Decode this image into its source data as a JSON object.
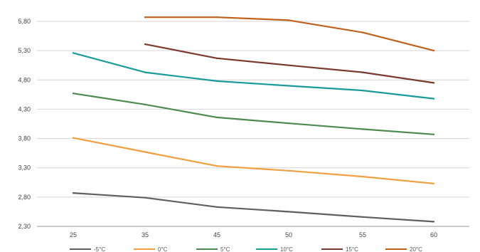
{
  "chart_data": {
    "type": "line",
    "x": [
      "25",
      "35",
      "45",
      "50",
      "55",
      "60"
    ],
    "ylim": [
      2.3,
      5.8
    ],
    "yticks": [
      "2,30",
      "2,80",
      "3,30",
      "3,80",
      "4,30",
      "4,80",
      "5,30",
      "5,80"
    ],
    "grid": "horizontal",
    "legend": "bottom",
    "series": [
      {
        "name": "-5°C",
        "color": "#5f5f5f",
        "values": [
          2.87,
          2.79,
          2.63,
          2.55,
          2.46,
          2.38
        ]
      },
      {
        "name": "0°C",
        "color": "#f0a040",
        "values": [
          3.81,
          3.57,
          3.33,
          3.25,
          3.15,
          3.03
        ]
      },
      {
        "name": "5°C",
        "color": "#4d8a4f",
        "values": [
          4.57,
          4.38,
          4.16,
          4.06,
          3.96,
          3.87
        ]
      },
      {
        "name": "10°C",
        "color": "#1a9a9a",
        "values": [
          5.26,
          4.93,
          4.78,
          4.7,
          4.62,
          4.48
        ]
      },
      {
        "name": "15°C",
        "color": "#7a3a2e",
        "values": [
          null,
          5.41,
          5.17,
          5.05,
          4.93,
          4.75
        ]
      },
      {
        "name": "20°C",
        "color": "#c0601c",
        "values": [
          null,
          5.87,
          5.87,
          5.82,
          5.61,
          5.3
        ]
      }
    ]
  }
}
